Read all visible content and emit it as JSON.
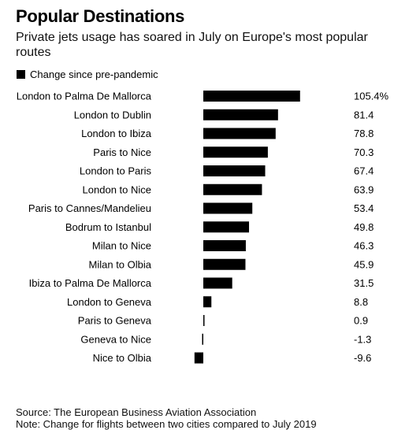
{
  "header": {
    "title": "Popular Destinations",
    "subtitle": "Private jets usage has soared in July on Europe's most popular routes"
  },
  "legend": {
    "label": "Change since pre-pandemic",
    "color": "#000000"
  },
  "chart_data": {
    "type": "bar",
    "orientation": "horizontal",
    "title": "Popular Destinations",
    "subtitle": "Private jets usage has soared in July on Europe's most popular routes",
    "categories": [
      "London to Palma De Mallorca",
      "London to Dublin",
      "London to Ibiza",
      "Paris to Nice",
      "London to Paris",
      "London to Nice",
      "Paris to Cannes/Mandelieu",
      "Bodrum to Istanbul",
      "Milan to Nice",
      "Milan to Olbia",
      "Ibiza to Palma De Mallorca",
      "London to Geneva",
      "Paris to Geneva",
      "Geneva to Nice",
      "Nice to Olbia"
    ],
    "series": [
      {
        "name": "Change since pre-pandemic",
        "values": [
          105.4,
          81.4,
          78.8,
          70.3,
          67.4,
          63.9,
          53.4,
          49.8,
          46.3,
          45.9,
          31.5,
          8.8,
          0.9,
          -1.3,
          -9.6
        ]
      }
    ],
    "value_labels": [
      "105.4%",
      "81.4",
      "78.8",
      "70.3",
      "67.4",
      "63.9",
      "53.4",
      "49.8",
      "46.3",
      "45.9",
      "31.5",
      "8.8",
      "0.9",
      "-1.3",
      "-9.6"
    ],
    "xlim": [
      -10,
      106
    ],
    "bar_color": "#000000",
    "legend_position": "top-left",
    "grid": false
  },
  "footer": {
    "source": "Source: The European Business Aviation Association",
    "note": "Note: Change for flights between two cities compared to July 2019"
  }
}
